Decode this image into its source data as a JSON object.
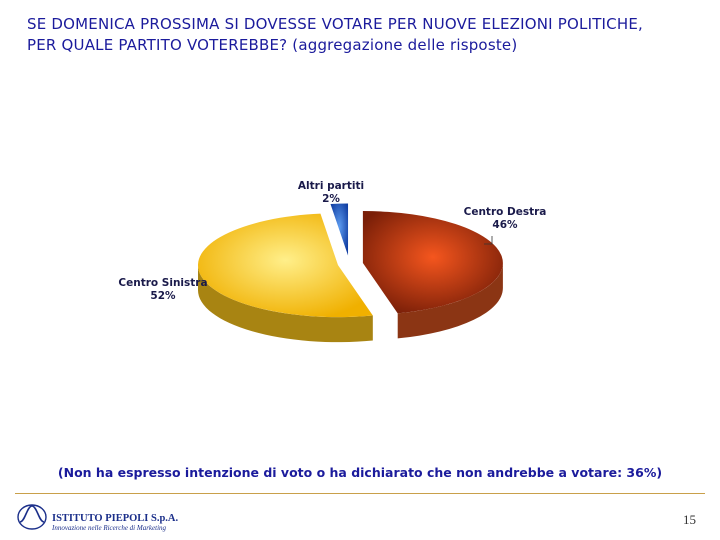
{
  "header": {
    "title_line1": "SE DOMENICA PROSSIMA SI DOVESSE VOTARE PER NUOVE ELEZIONI POLITICHE,",
    "title_line2": "PER QUALE PARTITO VOTEREBBE? (aggregazione delle risposte)"
  },
  "chart_data": {
    "type": "pie",
    "style": "3d-exploded",
    "slices": [
      {
        "label": "Centro Destra",
        "value": 46,
        "value_label": "46%",
        "color_light": "#f5561e",
        "color_dark": "#7a1f08",
        "side_color": "#8b3514"
      },
      {
        "label": "Centro Sinistra",
        "value": 52,
        "value_label": "52%",
        "color_light": "#ffef8a",
        "color_dark": "#f0b000",
        "side_color": "#a88412"
      },
      {
        "label": "Altri partiti",
        "value": 2,
        "value_label": "2%",
        "color_light": "#5d9cf0",
        "color_dark": "#123fa3",
        "side_color": "#15357f"
      }
    ]
  },
  "footer": {
    "note": "(Non ha espresso intenzione di voto o ha dichiarato che non andrebbe a votare: 36%)",
    "company_name": "ISTITUTO PIEPOLI S.p.A.",
    "company_tagline": "Innovazione nelle Ricerche di Marketing",
    "page_number": "15"
  }
}
